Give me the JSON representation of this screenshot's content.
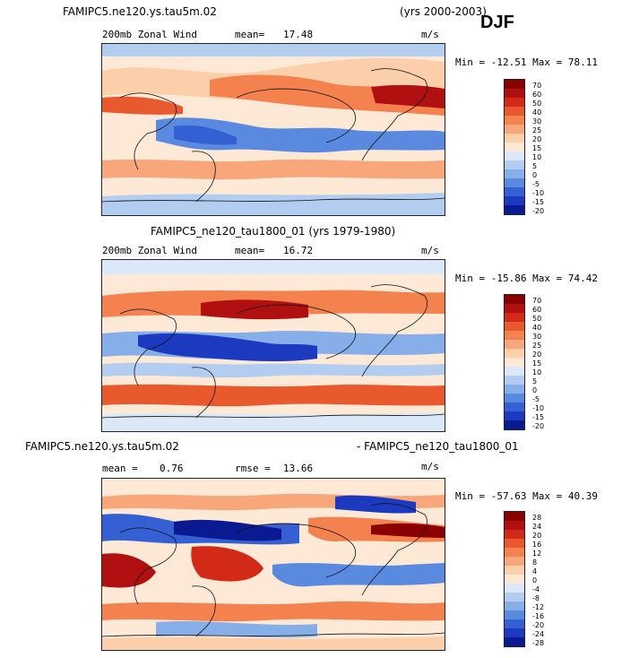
{
  "header": {
    "case": "FAMIPC5.ne120.ys.tau5m.02",
    "years": "(yrs 2000-2003)",
    "season": "DJF"
  },
  "panels": [
    {
      "title": "",
      "variable": "200mb Zonal Wind",
      "mean_label": "mean=",
      "mean": "17.48",
      "units": "m/s",
      "minmax": "Min = -12.51 Max =  78.11",
      "colorbar": [
        "70",
        "60",
        "50",
        "40",
        "30",
        "25",
        "20",
        "15",
        "10",
        "5",
        "0",
        "-5",
        "-10",
        "-15",
        "-20"
      ],
      "colors": [
        "#8a0000",
        "#b01010",
        "#d22a16",
        "#e85a2e",
        "#f3824e",
        "#f7a77a",
        "#fbcfaa",
        "#fde9d6",
        "#dbe8f7",
        "#b3cdf0",
        "#86aee8",
        "#5a8ae0",
        "#3560d4",
        "#1c3ac0",
        "#0a1a90"
      ]
    },
    {
      "title": "FAMIPC5_ne120_tau1800_01 (yrs 1979-1980)",
      "variable": "200mb Zonal Wind",
      "mean_label": "mean=",
      "mean": "16.72",
      "units": "m/s",
      "minmax": "Min = -15.86 Max =  74.42",
      "colorbar": [
        "70",
        "60",
        "50",
        "40",
        "30",
        "25",
        "20",
        "15",
        "10",
        "5",
        "0",
        "-5",
        "-10",
        "-15",
        "-20"
      ],
      "colors": [
        "#8a0000",
        "#b01010",
        "#d22a16",
        "#e85a2e",
        "#f3824e",
        "#f7a77a",
        "#fbcfaa",
        "#fde9d6",
        "#dbe8f7",
        "#b3cdf0",
        "#86aee8",
        "#5a8ae0",
        "#3560d4",
        "#1c3ac0",
        "#0a1a90"
      ]
    },
    {
      "title_left": "FAMIPC5.ne120.ys.tau5m.02",
      "title_right": "- FAMIPC5_ne120_tau1800_01",
      "mean_label": "mean =",
      "mean": "0.76",
      "rmse_label": "rmse =",
      "rmse": "13.66",
      "units": "m/s",
      "minmax": "Min = -57.63 Max =  40.39",
      "colorbar": [
        "28",
        "24",
        "20",
        "16",
        "12",
        "8",
        "4",
        "0",
        "-4",
        "-8",
        "-12",
        "-16",
        "-20",
        "-24",
        "-28"
      ],
      "colors": [
        "#8a0000",
        "#b01010",
        "#d22a16",
        "#e85a2e",
        "#f3824e",
        "#f7a77a",
        "#fbcfaa",
        "#fde9d6",
        "#dbe8f7",
        "#b3cdf0",
        "#86aee8",
        "#5a8ae0",
        "#3560d4",
        "#1c3ac0",
        "#0a1a90"
      ]
    }
  ]
}
